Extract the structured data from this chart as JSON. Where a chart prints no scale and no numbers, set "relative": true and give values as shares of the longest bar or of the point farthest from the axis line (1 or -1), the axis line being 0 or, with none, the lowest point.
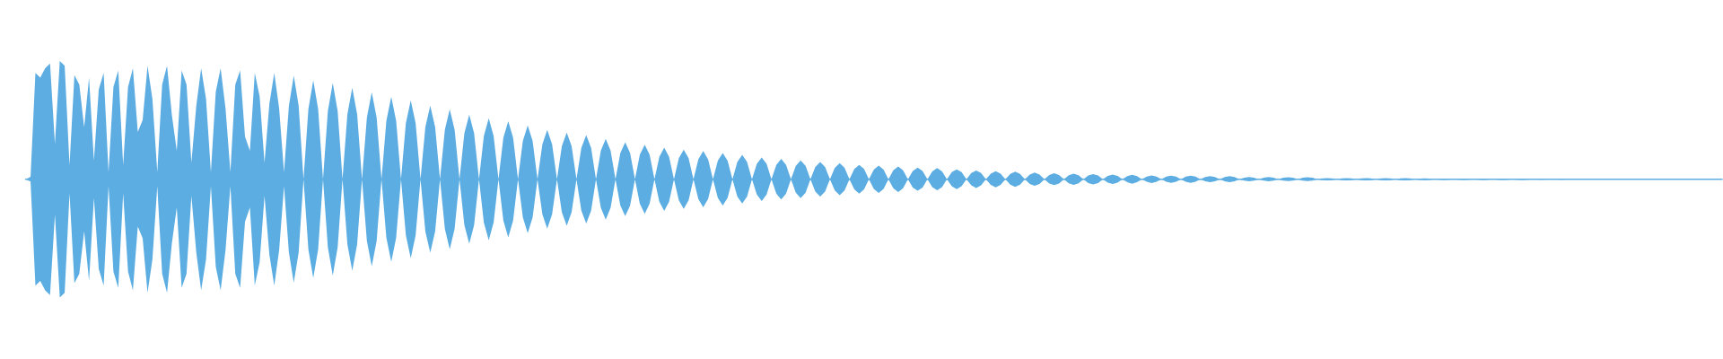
{
  "chart_data": {
    "type": "area",
    "relative": true,
    "categories": [
      null,
      null,
      null,
      null,
      null,
      null,
      null,
      null,
      null,
      null,
      null,
      null,
      null,
      null,
      null,
      null,
      null,
      null,
      null,
      null,
      null,
      null,
      null,
      null,
      null,
      null,
      null,
      null,
      null,
      null,
      null,
      null,
      null,
      null,
      null,
      null,
      null,
      null,
      null,
      null,
      null,
      null,
      null,
      null,
      null,
      null,
      null,
      null,
      null,
      null,
      null,
      null,
      null,
      null,
      null,
      null,
      null,
      null,
      null,
      null,
      null,
      null,
      null,
      null,
      null,
      null,
      null,
      null,
      null,
      null,
      null,
      null,
      null,
      null,
      null,
      null,
      null,
      null,
      null,
      null,
      null,
      null,
      null,
      null,
      null,
      null,
      null,
      null,
      null,
      null,
      null,
      null,
      null,
      null,
      null,
      null,
      null,
      null,
      null,
      null,
      null,
      null,
      null,
      null,
      null,
      null,
      null,
      null,
      null,
      null,
      null,
      null,
      null,
      null,
      null,
      null,
      null,
      null,
      null,
      null,
      null,
      null,
      null,
      null,
      null,
      null,
      null,
      null,
      null,
      null,
      null,
      null,
      null,
      null,
      null,
      null,
      null,
      null,
      null,
      null,
      null,
      null,
      null,
      null,
      null,
      null,
      null,
      null,
      null,
      null,
      null,
      null,
      null,
      null,
      null,
      null,
      null,
      null,
      null,
      null,
      null,
      null,
      null,
      null,
      null,
      null,
      null,
      null,
      null,
      null,
      null,
      null,
      null,
      null,
      null,
      null,
      null,
      null,
      null,
      null,
      null,
      null,
      null,
      null,
      null,
      null,
      null,
      null,
      null,
      null,
      null,
      null,
      null,
      null,
      null,
      null,
      null,
      null,
      null,
      null,
      null,
      null,
      null,
      null,
      null,
      null,
      null,
      null,
      null,
      null,
      null,
      null,
      null,
      null,
      null,
      null,
      null,
      null,
      null,
      null,
      null,
      null,
      null,
      null,
      null,
      null,
      null,
      null,
      null,
      null,
      null,
      null,
      null,
      null,
      null,
      null,
      null,
      null,
      null,
      null,
      null,
      null,
      null,
      null,
      null,
      null,
      null,
      null,
      null,
      null,
      null,
      null,
      null,
      null,
      null,
      null,
      null,
      null,
      null,
      null,
      null,
      null,
      null,
      null,
      null,
      null,
      null,
      null,
      null,
      null,
      null,
      null,
      null,
      null,
      null,
      null,
      null,
      null,
      null,
      null,
      null,
      null,
      null,
      null,
      null,
      null,
      null,
      null,
      null,
      null,
      null,
      null,
      null,
      null,
      null,
      null,
      null,
      null,
      null,
      null,
      null,
      null,
      null,
      null,
      null,
      null,
      null,
      null,
      null,
      null,
      null,
      null,
      null,
      null,
      null,
      null,
      null,
      null,
      null,
      null,
      null,
      null,
      null,
      null,
      null,
      null,
      null,
      null,
      null,
      null,
      null,
      null,
      null,
      null,
      null,
      null,
      null,
      null,
      null,
      null,
      null,
      null,
      null,
      null,
      null,
      null,
      null,
      null,
      null
    ],
    "series": [
      {
        "color": "#5dade2",
        "values": [
          0,
          0.02,
          0.9,
          0.86,
          0.94,
          0.98,
          0.3,
          1.0,
          0.96,
          0.12,
          0.88,
          0.8,
          0.44,
          0.86,
          0.16,
          0.76,
          0.9,
          0.06,
          0.78,
          0.92,
          0.12,
          0.78,
          0.94,
          0.4,
          0.5,
          0.96,
          0.68,
          0.06,
          0.8,
          0.96,
          0.54,
          0.24,
          0.92,
          0.8,
          0.14,
          0.62,
          0.94,
          0.68,
          0.06,
          0.74,
          0.94,
          0.6,
          0.06,
          0.8,
          0.92,
          0.36,
          0.24,
          0.9,
          0.7,
          0.14,
          0.64,
          0.9,
          0.6,
          0.06,
          0.62,
          0.876,
          0.622,
          0,
          0.594,
          0.836,
          0.594,
          0,
          0.578,
          0.814,
          0.578,
          0,
          0.55,
          0.774,
          0.55,
          0,
          0.522,
          0.736,
          0.522,
          0,
          0.496,
          0.698,
          0.496,
          0,
          0.474,
          0.668,
          0.474,
          0,
          0.442,
          0.622,
          0.442,
          0,
          0.42,
          0.592,
          0.42,
          0,
          0.388,
          0.546,
          0.388,
          0,
          0.366,
          0.516,
          0.366,
          0,
          0.35,
          0.492,
          0.35,
          0,
          0.324,
          0.456,
          0.324,
          0,
          0.296,
          0.418,
          0.296,
          0,
          0.28,
          0.394,
          0.28,
          0,
          0.266,
          0.374,
          0.266,
          0,
          0.242,
          0.342,
          0.242,
          0,
          0.222,
          0.312,
          0.222,
          0,
          0.208,
          0.292,
          0.208,
          0,
          0.19,
          0.268,
          0.19,
          0,
          0.178,
          0.25,
          0.178,
          0,
          0.168,
          0.238,
          0.168,
          0,
          0.158,
          0.222,
          0.158,
          0,
          0.146,
          0.206,
          0.146,
          0,
          0.13,
          0.184,
          0.13,
          0,
          0.122,
          0.172,
          0.122,
          0,
          0.114,
          0.16,
          0.114,
          0,
          0.104,
          0.146,
          0.104,
          0,
          0.096,
          0.136,
          0.096,
          0,
          0.086,
          0.122,
          0.086,
          0,
          0.082,
          0.116,
          0.082,
          0,
          0.076,
          0.108,
          0.076,
          0,
          0.07,
          0.098,
          0.07,
          0,
          0.066,
          0.094,
          0.066,
          0,
          0.06,
          0.084,
          0.06,
          0,
          0.052,
          0.074,
          0.052,
          0,
          0.048,
          0.068,
          0.048,
          0,
          0.046,
          0.064,
          0.046,
          0,
          0.04,
          0.056,
          0.04,
          0,
          0.036,
          0.05,
          0.036,
          0,
          0.034,
          0.048,
          0.034,
          0,
          0.032,
          0.044,
          0.032,
          0,
          0.028,
          0.04,
          0.028,
          0,
          0.026,
          0.038,
          0.026,
          0,
          0.022,
          0.032,
          0.022,
          0,
          0.022,
          0.03,
          0.022,
          0,
          0.022,
          0.03,
          0.022,
          0,
          0.018,
          0.026,
          0.018,
          0,
          0.018,
          0.026,
          0.018,
          0,
          0.012,
          0.018,
          0.012,
          0,
          0.012,
          0.018,
          0.012,
          0,
          0.012,
          0.016,
          0.012,
          0,
          0.012,
          0.016,
          0.012,
          0,
          0.008,
          0.01,
          0.008,
          0,
          0.008,
          0.01,
          0.008,
          0,
          0.008,
          0.01,
          0.008,
          0,
          0.008,
          0.01,
          0.008,
          0,
          0.008,
          0.01,
          0.008,
          0,
          0.006,
          0.008,
          0.006,
          0,
          0.004,
          0.006,
          0.004,
          0,
          0.004,
          0.006,
          0.004,
          0,
          0.004,
          0.006,
          0.004,
          0,
          0.004,
          0.006,
          0.004,
          0,
          0.004,
          0.006,
          0.004,
          0,
          0.002,
          0.004,
          0.002,
          0,
          0.002,
          0.004,
          0.002,
          0,
          0.002,
          0.002,
          0.002,
          0,
          0.002,
          0.002,
          0.002,
          0,
          0.002,
          0.002,
          0.002,
          0,
          0.002,
          0.002,
          0.002,
          0,
          0.002,
          0.002,
          0.002,
          0,
          0.002,
          0.002,
          0.002,
          0,
          0.002,
          0.002,
          0.002,
          0,
          0.002,
          0.002,
          0.002
        ]
      },
      {
        "color": "#5caee2",
        "values": [
          0,
          -0.02,
          -0.9,
          -0.86,
          -0.94,
          -0.98,
          -0.3,
          -1.0,
          -0.96,
          -0.12,
          -0.88,
          -0.8,
          -0.44,
          -0.86,
          -0.16,
          -0.76,
          -0.9,
          -0.06,
          -0.78,
          -0.92,
          -0.12,
          -0.78,
          -0.94,
          -0.4,
          -0.5,
          -0.96,
          -0.68,
          -0.06,
          -0.8,
          -0.96,
          -0.54,
          -0.24,
          -0.92,
          -0.8,
          -0.14,
          -0.62,
          -0.94,
          -0.68,
          -0.06,
          -0.74,
          -0.94,
          -0.6,
          -0.06,
          -0.8,
          -0.92,
          -0.36,
          -0.24,
          -0.9,
          -0.7,
          -0.14,
          -0.64,
          -0.9,
          -0.6,
          -0.06,
          -0.62,
          -0.876,
          -0.622,
          0,
          -0.594,
          -0.836,
          -0.594,
          0,
          -0.578,
          -0.814,
          -0.578,
          0,
          -0.55,
          -0.774,
          -0.55,
          0,
          -0.522,
          -0.736,
          -0.522,
          0,
          -0.496,
          -0.698,
          -0.496,
          0,
          -0.474,
          -0.668,
          -0.474,
          0,
          -0.442,
          -0.622,
          -0.442,
          0,
          -0.42,
          -0.592,
          -0.42,
          0,
          -0.388,
          -0.546,
          -0.388,
          0,
          -0.366,
          -0.516,
          -0.366,
          0,
          -0.35,
          -0.492,
          -0.35,
          0,
          -0.324,
          -0.456,
          -0.324,
          0,
          -0.296,
          -0.418,
          -0.296,
          0,
          -0.28,
          -0.394,
          -0.28,
          0,
          -0.266,
          -0.374,
          -0.266,
          0,
          -0.242,
          -0.342,
          -0.242,
          0,
          -0.222,
          -0.312,
          -0.222,
          0,
          -0.208,
          -0.292,
          -0.208,
          0,
          -0.19,
          -0.268,
          -0.19,
          0,
          -0.178,
          -0.25,
          -0.178,
          0,
          -0.168,
          -0.238,
          -0.168,
          0,
          -0.158,
          -0.222,
          -0.158,
          0,
          -0.146,
          -0.206,
          -0.146,
          0,
          -0.13,
          -0.184,
          -0.13,
          0,
          -0.122,
          -0.172,
          -0.122,
          0,
          -0.114,
          -0.16,
          -0.114,
          0,
          -0.104,
          -0.146,
          -0.104,
          0,
          -0.096,
          -0.136,
          -0.096,
          0,
          -0.086,
          -0.122,
          -0.086,
          0,
          -0.082,
          -0.116,
          -0.082,
          0,
          -0.076,
          -0.108,
          -0.076,
          0,
          -0.07,
          -0.098,
          -0.07,
          0,
          -0.066,
          -0.094,
          -0.066,
          0,
          -0.06,
          -0.084,
          -0.06,
          0,
          -0.052,
          -0.074,
          -0.052,
          0,
          -0.048,
          -0.068,
          -0.048,
          0,
          -0.046,
          -0.064,
          -0.046,
          0,
          -0.04,
          -0.056,
          -0.04,
          0,
          -0.036,
          -0.05,
          -0.036,
          0,
          -0.034,
          -0.048,
          -0.034,
          0,
          -0.032,
          -0.044,
          -0.032,
          0,
          -0.028,
          -0.04,
          -0.028,
          0,
          -0.026,
          -0.038,
          -0.026,
          0,
          -0.022,
          -0.032,
          -0.022,
          0,
          -0.022,
          -0.03,
          -0.022,
          0,
          -0.022,
          -0.03,
          -0.022,
          0,
          -0.018,
          -0.026,
          -0.018,
          0,
          -0.018,
          -0.026,
          -0.018,
          0,
          -0.012,
          -0.018,
          -0.012,
          0,
          -0.012,
          -0.018,
          -0.012,
          0,
          -0.012,
          -0.016,
          -0.012,
          0,
          -0.012,
          -0.016,
          -0.012,
          0,
          -0.008,
          -0.01,
          -0.008,
          0,
          -0.008,
          -0.01,
          -0.008,
          0,
          -0.008,
          -0.01,
          -0.008,
          0,
          -0.008,
          -0.01,
          -0.008,
          0,
          -0.008,
          -0.01,
          -0.008,
          0,
          -0.006,
          -0.008,
          -0.006,
          0,
          -0.004,
          -0.006,
          -0.004,
          0,
          -0.004,
          -0.006,
          -0.004,
          0,
          -0.004,
          -0.006,
          -0.004,
          0,
          -0.004,
          -0.006,
          -0.004,
          0,
          -0.004,
          -0.006,
          -0.004,
          0,
          -0.002,
          -0.004,
          -0.002,
          0,
          -0.002,
          -0.004,
          -0.002,
          0,
          -0.002,
          -0.002,
          -0.002,
          0,
          -0.002,
          -0.002,
          -0.002,
          0,
          -0.002,
          -0.002,
          -0.002,
          0,
          -0.002,
          -0.002,
          -0.002,
          0,
          -0.002,
          -0.002,
          -0.002,
          0,
          -0.002,
          -0.002,
          -0.002,
          0,
          -0.002,
          -0.002,
          -0.002,
          0,
          -0.002,
          -0.002,
          -0.002
        ]
      }
    ]
  }
}
